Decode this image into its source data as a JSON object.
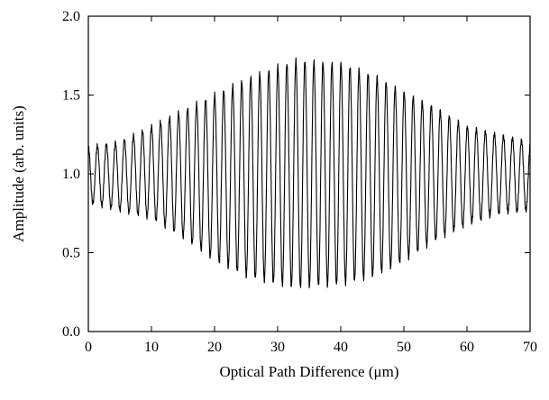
{
  "chart_data": {
    "type": "line",
    "title": "",
    "xlabel": "Optical Path Difference (μm)",
    "ylabel": "Amplitude (arb. units)",
    "xlim": [
      0,
      70
    ],
    "ylim": [
      0.0,
      2.0
    ],
    "xticks": [
      0,
      10,
      20,
      30,
      40,
      50,
      60,
      70
    ],
    "xtick_labels": [
      "0",
      "10",
      "20",
      "30",
      "40",
      "50",
      "60",
      "70"
    ],
    "yticks": [
      0.0,
      0.5,
      1.0,
      1.5,
      2.0
    ],
    "ytick_labels": [
      "0.0",
      "0.5",
      "1.0",
      "1.5",
      "2.0"
    ],
    "grid": false,
    "line_color": "#000000",
    "series": [
      {
        "fringe_period_um": 1.43,
        "baseline": 1.0,
        "upper_envelope": {
          "x": [
            0,
            5,
            10,
            15,
            20,
            25,
            30,
            33,
            36,
            40,
            45,
            50,
            55,
            60,
            65,
            70
          ],
          "y": [
            1.17,
            1.2,
            1.3,
            1.4,
            1.5,
            1.6,
            1.68,
            1.72,
            1.71,
            1.7,
            1.63,
            1.52,
            1.42,
            1.3,
            1.25,
            1.2
          ]
        },
        "lower_envelope": {
          "x": [
            0,
            5,
            10,
            15,
            20,
            25,
            30,
            33,
            36,
            40,
            45,
            50,
            55,
            60,
            65,
            70
          ],
          "y": [
            0.82,
            0.77,
            0.72,
            0.6,
            0.45,
            0.35,
            0.3,
            0.28,
            0.29,
            0.3,
            0.35,
            0.45,
            0.58,
            0.68,
            0.75,
            0.77
          ]
        }
      }
    ]
  }
}
